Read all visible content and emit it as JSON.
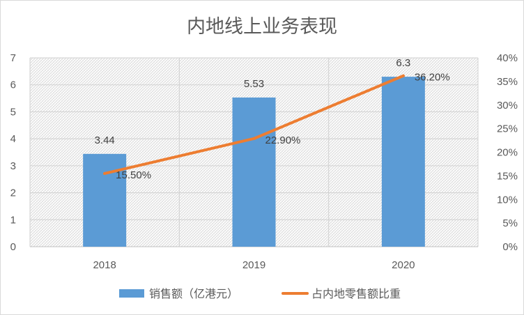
{
  "chart_data": {
    "type": "bar",
    "title": "内地线上业务表现",
    "categories": [
      "2018",
      "2019",
      "2020"
    ],
    "y_left": {
      "min": 0,
      "max": 7,
      "ticks": [
        "0",
        "1",
        "2",
        "3",
        "4",
        "5",
        "6",
        "7"
      ]
    },
    "y_right": {
      "min": 0,
      "max": 0.4,
      "ticks": [
        "0%",
        "5%",
        "10%",
        "15%",
        "20%",
        "25%",
        "30%",
        "35%",
        "40%"
      ]
    },
    "series": [
      {
        "name": "销售额（亿港元）",
        "kind": "bar",
        "axis": "left",
        "color": "#5b9bd5",
        "values": [
          3.44,
          5.53,
          6.3
        ],
        "labels": [
          "3.44",
          "5.53",
          "6.3"
        ]
      },
      {
        "name": "占内地零售额比重",
        "kind": "line",
        "axis": "right",
        "color": "#ed7d31",
        "values": [
          0.155,
          0.229,
          0.362
        ],
        "labels": [
          "15.50%",
          "22.90%",
          "36.20%"
        ]
      }
    ],
    "grid": true,
    "legend": "bottom"
  }
}
